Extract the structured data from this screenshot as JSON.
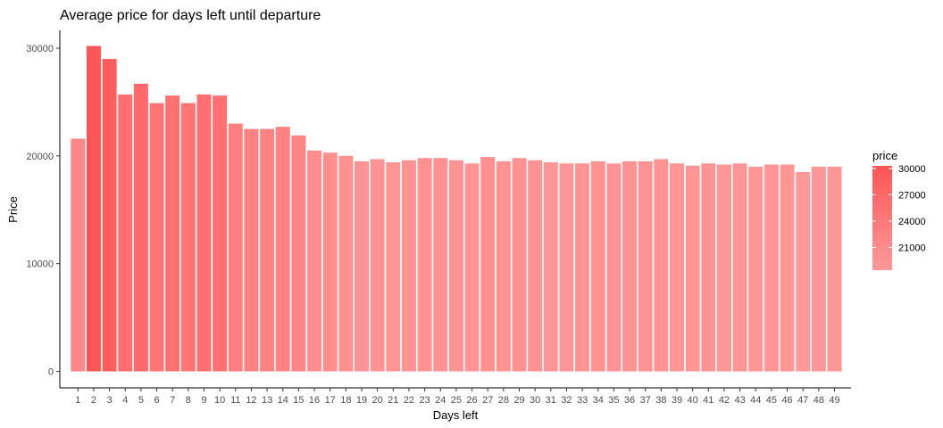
{
  "chart_data": {
    "type": "bar",
    "title": "Average price for days left until departure",
    "xlabel": "Days left",
    "ylabel": "Price",
    "categories": [
      "1",
      "2",
      "3",
      "4",
      "5",
      "6",
      "7",
      "8",
      "9",
      "10",
      "11",
      "12",
      "13",
      "14",
      "15",
      "16",
      "17",
      "18",
      "19",
      "20",
      "21",
      "22",
      "23",
      "24",
      "25",
      "26",
      "27",
      "28",
      "29",
      "30",
      "31",
      "32",
      "33",
      "34",
      "35",
      "36",
      "37",
      "38",
      "39",
      "40",
      "41",
      "42",
      "43",
      "44",
      "45",
      "46",
      "47",
      "48",
      "49"
    ],
    "values": [
      21600,
      30200,
      29000,
      25700,
      26700,
      24900,
      25600,
      24900,
      25700,
      25600,
      23000,
      22500,
      22500,
      22700,
      21900,
      20500,
      20300,
      20000,
      19500,
      19700,
      19400,
      19600,
      19800,
      19800,
      19600,
      19300,
      19900,
      19500,
      19800,
      19600,
      19400,
      19300,
      19300,
      19500,
      19300,
      19500,
      19500,
      19700,
      19300,
      19100,
      19300,
      19200,
      19300,
      19000,
      19200,
      19200,
      18500,
      19000,
      19000
    ],
    "ylim": [
      0,
      31500
    ],
    "yticks": [
      0,
      10000,
      20000,
      30000
    ],
    "grid": false,
    "legend": {
      "title": "price",
      "position": "right",
      "labels": [
        "30000",
        "27000",
        "24000",
        "21000"
      ],
      "label_values": [
        30000,
        27000,
        24000,
        21000
      ],
      "color_low": "#ff9999",
      "color_high": "#ff5555",
      "range": [
        18500,
        30200
      ]
    }
  }
}
